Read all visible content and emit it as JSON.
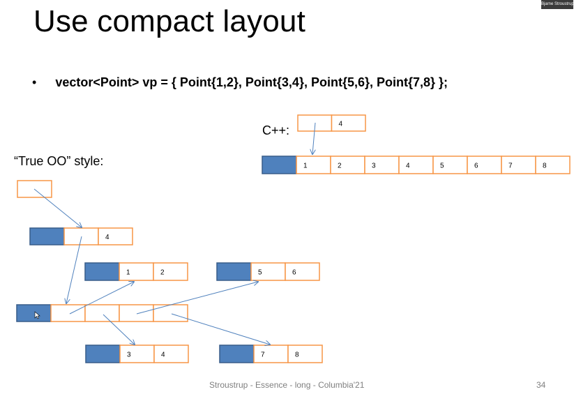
{
  "slide": {
    "title": "Use compact layout",
    "bullet_marker": "•",
    "bullet": "vector<Point> vp = { Point{1,2}, Point{3,4}, Point{5,6}, Point{7,8}  };",
    "cpp_label": "C++:",
    "oo_label": "“True OO” style:",
    "footer": "Stroustrup - Essence - long - Columbia'21",
    "page_number": "34",
    "presenter_tag": "Bjarne Stroustrup"
  },
  "colors": {
    "header_fill": "#4f81bd",
    "header_stroke": "#385d8a",
    "cell_stroke": "#f79646",
    "arrow": "#4f81bd"
  },
  "cpp": {
    "top_cells": [
      "",
      "4"
    ],
    "cells": [
      "",
      "1",
      "2",
      "3",
      "4",
      "5",
      "6",
      "7",
      "8"
    ]
  },
  "oo": {
    "pointer_cell": [
      ""
    ],
    "vector_header": [
      "",
      "",
      "4"
    ],
    "point_a": [
      "",
      "1",
      "2"
    ],
    "point_b": [
      "",
      "5",
      "6"
    ],
    "pointer_array": [
      "",
      "",
      "",
      "",
      ""
    ],
    "point_c": [
      "",
      "3",
      "4"
    ],
    "point_d": [
      "",
      "7",
      "8"
    ]
  }
}
